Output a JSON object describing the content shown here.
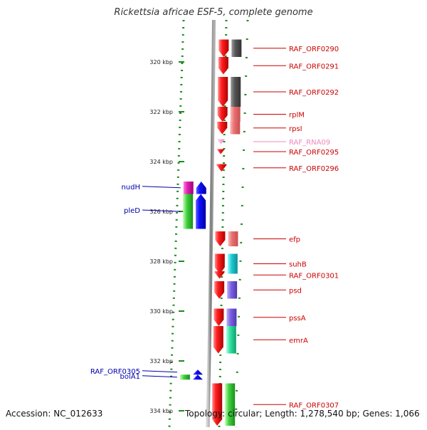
{
  "title": "Rickettsia africae ESF-5, complete genome",
  "accession_label": "Accession: NC_012633",
  "topology_label": "Topology: circular; Length: 1,278,540 bp; Genes: 1,066",
  "colors": {
    "backbone": "#8a8a8a",
    "tick": "#1e8a1e",
    "forward_label": "#cc0000",
    "reverse_label": "#0000aa",
    "rna_label": "#ee88bb"
  },
  "scale": {
    "unit": "kbp",
    "ticks": [
      {
        "kbp": 320,
        "label": "320 kbp"
      },
      {
        "kbp": 322,
        "label": "322 kbp"
      },
      {
        "kbp": 324,
        "label": "324 kbp"
      },
      {
        "kbp": 326,
        "label": "326 kbp"
      },
      {
        "kbp": 328,
        "label": "328 kbp"
      },
      {
        "kbp": 330,
        "label": "330 kbp"
      },
      {
        "kbp": 332,
        "label": "332 kbp"
      },
      {
        "kbp": 334,
        "label": "334 kbp"
      }
    ]
  },
  "genes": {
    "forward": [
      {
        "name": "RAF_ORF0290",
        "start_kbp": 319.1,
        "end_kbp": 319.8,
        "color": "red",
        "partner": "dark-gray"
      },
      {
        "name": "RAF_ORF0291",
        "start_kbp": 319.8,
        "end_kbp": 320.5,
        "color": "red",
        "partner": "none"
      },
      {
        "name": "RAF_ORF0292",
        "start_kbp": 320.6,
        "end_kbp": 321.8,
        "color": "red",
        "partner": "dark-gray"
      },
      {
        "name": "rplM",
        "start_kbp": 321.8,
        "end_kbp": 322.4,
        "color": "red",
        "partner": "pink"
      },
      {
        "name": "rpsI",
        "start_kbp": 322.4,
        "end_kbp": 322.9,
        "color": "red",
        "partner": "pink"
      },
      {
        "name": "RAF_RNA09",
        "start_kbp": 323.1,
        "end_kbp": 323.3,
        "color": "light-pink",
        "partner": "none"
      },
      {
        "name": "RAF_ORF0295",
        "start_kbp": 323.5,
        "end_kbp": 323.7,
        "color": "red",
        "partner": "none"
      },
      {
        "name": "RAF_ORF0296",
        "start_kbp": 324.1,
        "end_kbp": 324.4,
        "color": "red",
        "partner": "none"
      },
      {
        "name": "efp",
        "start_kbp": 326.8,
        "end_kbp": 327.4,
        "color": "red",
        "partner": "pink"
      },
      {
        "name": "suhB",
        "start_kbp": 327.7,
        "end_kbp": 328.5,
        "color": "red",
        "partner": "cyan"
      },
      {
        "name": "RAF_ORF0301",
        "start_kbp": 328.4,
        "end_kbp": 328.7,
        "color": "red",
        "partner": "none"
      },
      {
        "name": "psd",
        "start_kbp": 328.8,
        "end_kbp": 329.5,
        "color": "red",
        "partner": "purple"
      },
      {
        "name": "pssA",
        "start_kbp": 329.9,
        "end_kbp": 330.6,
        "color": "red",
        "partner": "purple"
      },
      {
        "name": "emrA",
        "start_kbp": 330.6,
        "end_kbp": 331.7,
        "color": "red",
        "partner": "teal"
      },
      {
        "name": "RAF_ORF0307",
        "start_kbp": 332.9,
        "end_kbp": 334.6,
        "color": "red",
        "partner": "green"
      }
    ],
    "reverse": [
      {
        "name": "nudH",
        "start_kbp": 324.8,
        "end_kbp": 325.3,
        "color": "blue",
        "partner": "magenta"
      },
      {
        "name": "pleD",
        "start_kbp": 325.3,
        "end_kbp": 326.7,
        "color": "blue",
        "partner": "green"
      },
      {
        "name": "RAF_ORF0305",
        "start_kbp": 332.35,
        "end_kbp": 332.55,
        "color": "blue",
        "partner": "none"
      },
      {
        "name": "bolA1",
        "start_kbp": 332.55,
        "end_kbp": 332.75,
        "color": "blue",
        "partner": "green"
      }
    ]
  }
}
